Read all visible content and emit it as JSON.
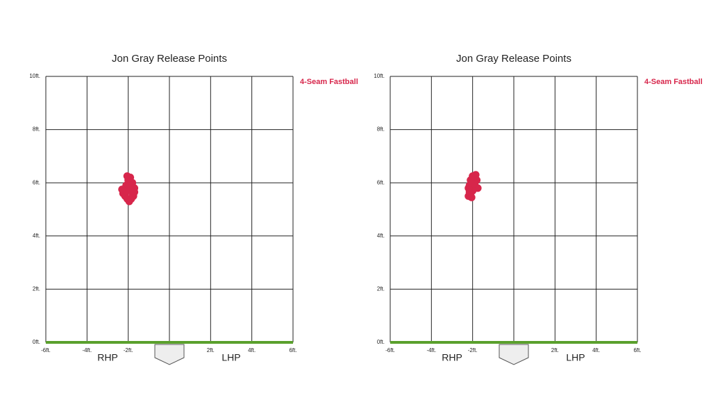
{
  "chart_data": [
    {
      "type": "scatter",
      "title": "Jon Gray Release Points",
      "annotations": [
        "RHP",
        "LHP"
      ],
      "xlim": [
        -6,
        6
      ],
      "ylim": [
        0,
        10
      ],
      "xticks": [
        {
          "value": -6,
          "label": "-6ft."
        },
        {
          "value": -4,
          "label": "-4ft."
        },
        {
          "value": -2,
          "label": "-2ft."
        },
        0,
        {
          "value": 2,
          "label": "2ft."
        },
        {
          "value": 4,
          "label": "4ft."
        },
        {
          "value": 6,
          "label": "6ft."
        }
      ],
      "yticks": [
        {
          "value": 0,
          "label": "0ft."
        },
        {
          "value": 2,
          "label": "2ft."
        },
        {
          "value": 4,
          "label": "4ft."
        },
        {
          "value": 6,
          "label": "6ft."
        },
        {
          "value": 8,
          "label": "8ft."
        },
        {
          "value": 10,
          "label": "10ft."
        }
      ],
      "grid": true,
      "legend": "top-right",
      "series": [
        {
          "name": "4-Seam Fastball",
          "color": "#d7264b",
          "x": [
            -2.2,
            -2.1,
            -2.0,
            -1.9,
            -1.8,
            -1.7,
            -2.25,
            -2.15,
            -2.05,
            -1.95,
            -1.85,
            -1.75,
            -2.1,
            -2.0,
            -1.9,
            -1.8,
            -2.05,
            -1.95,
            -2.3,
            -1.7
          ],
          "values": [
            5.7,
            5.9,
            6.1,
            6.2,
            6.0,
            5.8,
            5.6,
            5.5,
            5.4,
            5.3,
            5.4,
            5.5,
            5.7,
            5.8,
            5.9,
            5.6,
            6.25,
            6.15,
            5.75,
            5.65
          ]
        }
      ]
    },
    {
      "type": "scatter",
      "title": "Jon Gray Release Points",
      "annotations": [
        "RHP",
        "LHP"
      ],
      "xlim": [
        -6,
        6
      ],
      "ylim": [
        0,
        10
      ],
      "xticks": [
        {
          "value": -6,
          "label": "-6ft."
        },
        {
          "value": -4,
          "label": "-4ft."
        },
        {
          "value": -2,
          "label": "-2ft."
        },
        0,
        {
          "value": 2,
          "label": "2ft."
        },
        {
          "value": 4,
          "label": "4ft."
        },
        {
          "value": 6,
          "label": "6ft."
        }
      ],
      "yticks": [
        {
          "value": 0,
          "label": "0ft."
        },
        {
          "value": 2,
          "label": "2ft."
        },
        {
          "value": 4,
          "label": "4ft."
        },
        {
          "value": 6,
          "label": "6ft."
        },
        {
          "value": 8,
          "label": "8ft."
        },
        {
          "value": 10,
          "label": "10ft."
        }
      ],
      "grid": true,
      "legend": "top-right",
      "series": [
        {
          "name": "4-Seam Fastball",
          "color": "#d7264b",
          "x": [
            -2.2,
            -2.1,
            -2.0,
            -1.9,
            -1.8,
            -2.15,
            -2.05,
            -1.95,
            -1.85,
            -2.2,
            -2.1,
            -2.0,
            -1.75,
            -1.9,
            -2.15,
            -2.05
          ],
          "values": [
            5.5,
            5.6,
            5.7,
            5.9,
            6.1,
            5.9,
            6.0,
            6.2,
            6.3,
            5.8,
            6.1,
            6.25,
            5.8,
            5.95,
            5.65,
            5.45
          ]
        }
      ]
    }
  ]
}
